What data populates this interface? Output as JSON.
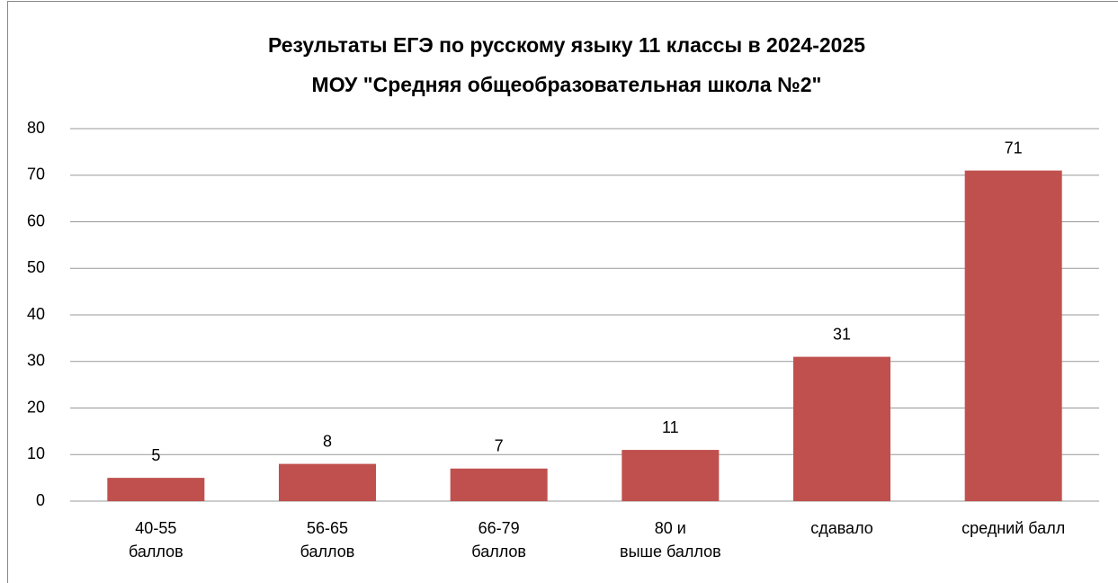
{
  "chart_data": {
    "type": "bar",
    "title": [
      "Результаты ЕГЭ по русскому языку 11 классы в 2024-2025",
      "МОУ \"Средняя общеобразовательная школа №2\""
    ],
    "categories": [
      "40-55\nбаллов",
      "56-65\nбаллов",
      "66-79\nбаллов",
      "80 и\nвыше баллов",
      "сдавало",
      "средний балл"
    ],
    "values": [
      5,
      8,
      7,
      11,
      31,
      71
    ],
    "color": "#c0504d",
    "ylim": [
      0,
      80
    ],
    "yticks": [
      0,
      10,
      20,
      30,
      40,
      50,
      60,
      70,
      80
    ],
    "grid": true
  }
}
